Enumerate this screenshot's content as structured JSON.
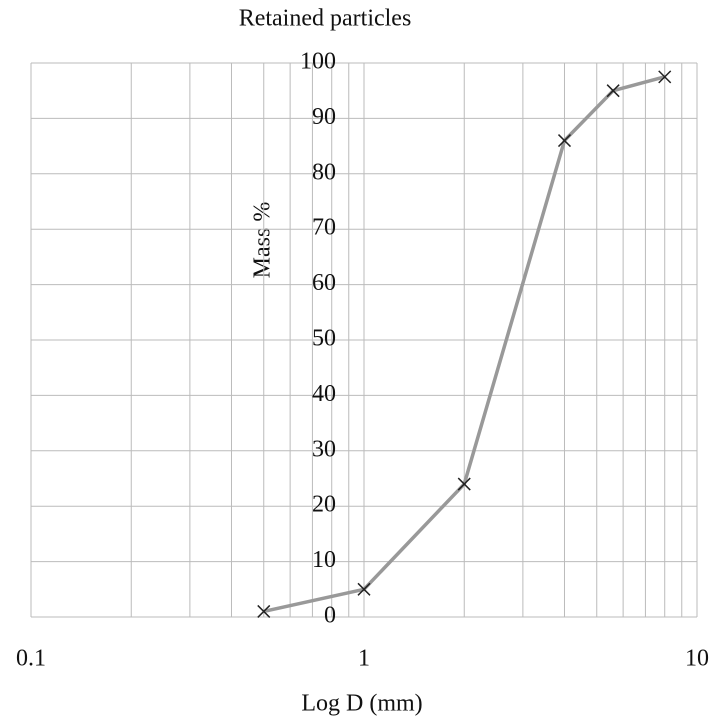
{
  "chart_data": {
    "type": "line",
    "title": "Retained particles",
    "x_label": "Log D (mm)",
    "y_label": "Mass %",
    "x": [
      0.5,
      1,
      2,
      4,
      5.6,
      8
    ],
    "values": [
      1,
      5,
      24,
      86,
      95,
      97.5
    ],
    "color": "#999999",
    "marker": "x",
    "marker_color": "#222222",
    "xscale": "log",
    "xlim": [
      0.1,
      10
    ],
    "xticks": [
      0.1,
      1,
      10
    ],
    "xgrid": [
      0.1,
      0.2,
      0.3,
      0.4,
      0.5,
      0.6,
      0.7,
      0.8,
      0.9,
      1,
      2,
      3,
      4,
      5,
      6,
      7,
      8,
      9,
      10
    ],
    "ylim": [
      0,
      100
    ],
    "yticks": [
      0,
      10,
      20,
      30,
      40,
      50,
      60,
      70,
      80,
      90,
      100
    ],
    "grid": true
  }
}
